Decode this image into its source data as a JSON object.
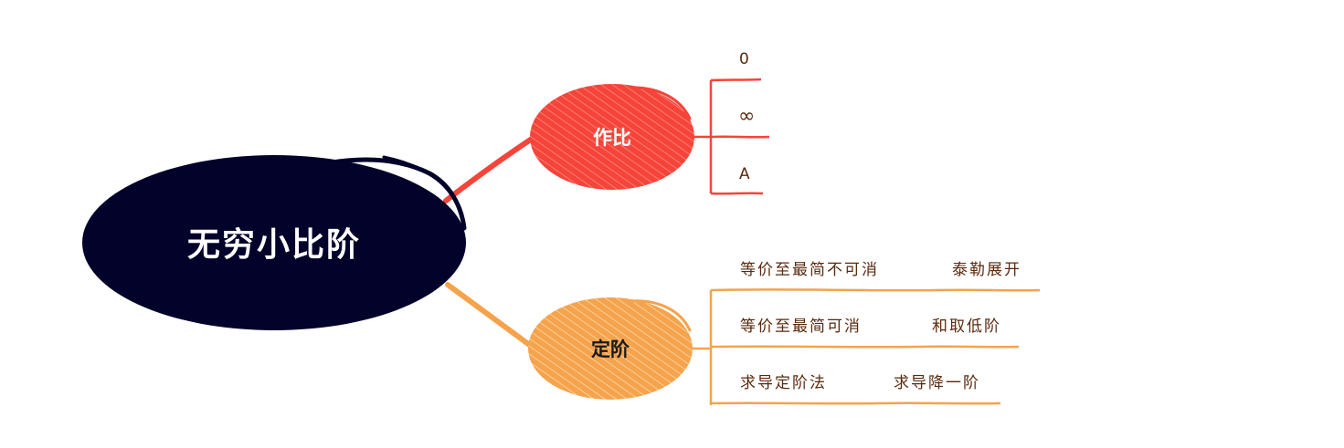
{
  "root": {
    "label": "无穷小比阶"
  },
  "branches": [
    {
      "label": "作比",
      "color": "#f5443a",
      "text_color": "#ffffff",
      "leaves": [
        {
          "label": "0"
        },
        {
          "label": "∞"
        },
        {
          "label": "A"
        }
      ]
    },
    {
      "label": "定阶",
      "color": "#f5a34c",
      "text_color": "#1a1a1a",
      "leaves": [
        {
          "label": "等价至最简不可消",
          "child": "泰勒展开"
        },
        {
          "label": "等价至最简可消",
          "child": "和取低阶"
        },
        {
          "label": "求导定阶法",
          "child": "求导降一阶"
        }
      ]
    }
  ],
  "colors": {
    "root_fill": "#02022a",
    "root_text": "#ffffff",
    "leaf_text": "#5a2a0e"
  }
}
